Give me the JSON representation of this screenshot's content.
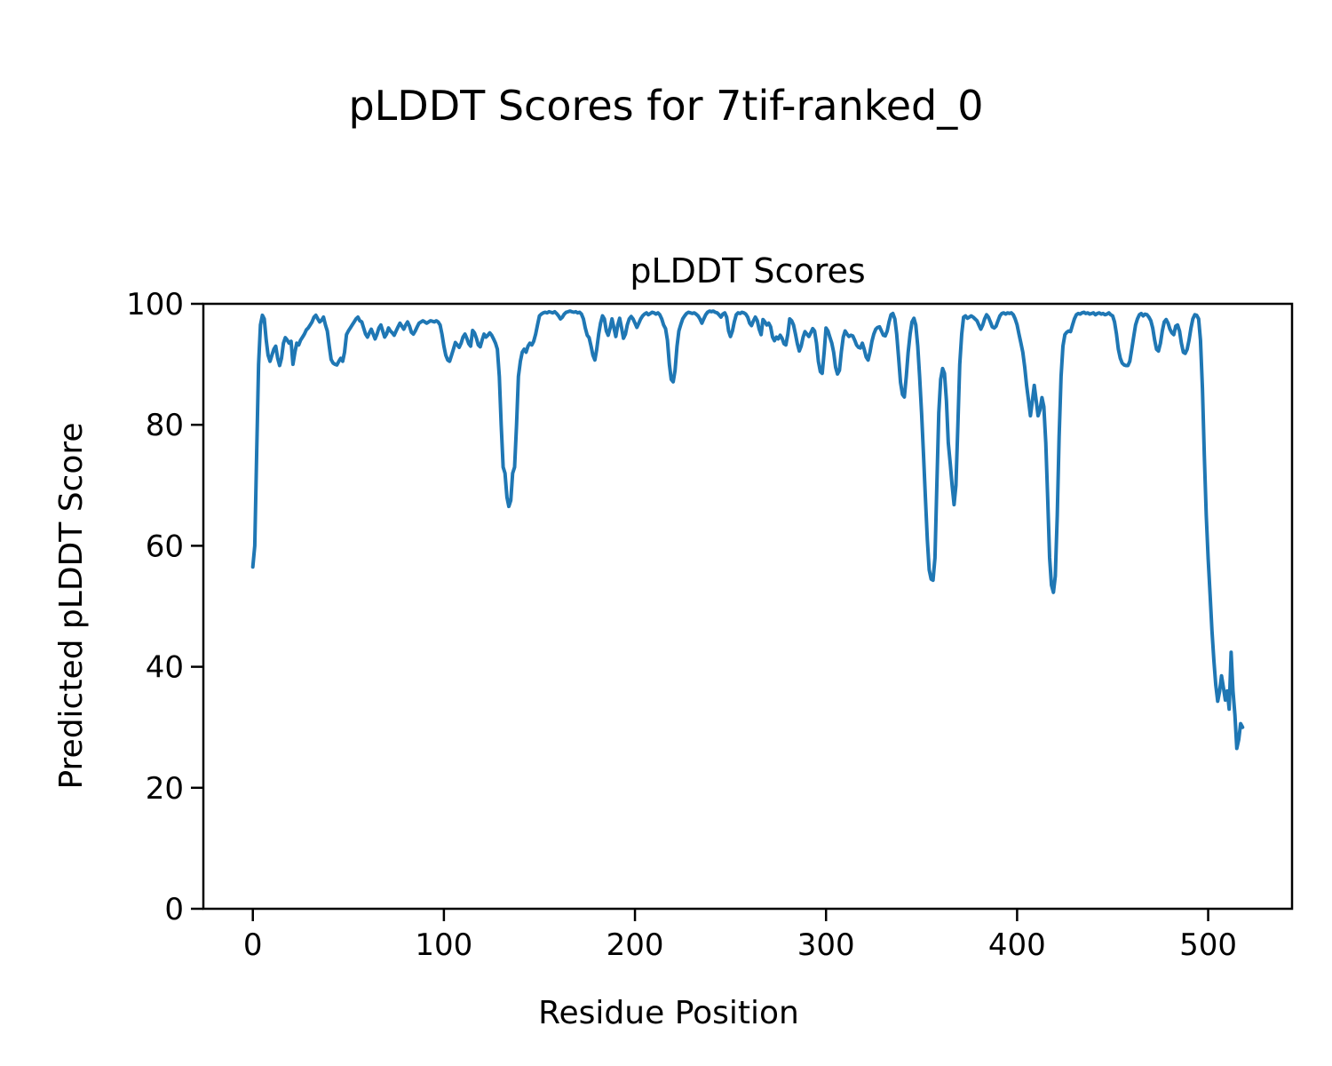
{
  "chart_data": {
    "type": "line",
    "suptitle": "pLDDT Scores for 7tif-ranked_0",
    "title": "pLDDT Scores",
    "xlabel": "Residue Position",
    "ylabel": "Predicted pLDDT Score",
    "series_name": "pLDDT",
    "x_start": 0,
    "x_step": 1,
    "xticks": [
      0,
      100,
      200,
      300,
      400,
      500
    ],
    "yticks": [
      0,
      20,
      40,
      60,
      80,
      100
    ],
    "xlim": [
      -25.9,
      543.9
    ],
    "ylim": [
      0,
      100
    ],
    "grid": false,
    "legend": false,
    "line_color": "#1f77b4",
    "axis_color": "#000000",
    "background_color": "#ffffff",
    "values": [
      56.5,
      60,
      75,
      90,
      96.5,
      98.1,
      97.5,
      94,
      91.5,
      90.5,
      91.5,
      92.5,
      93,
      91,
      89.8,
      91,
      93.5,
      94.4,
      94,
      93.5,
      93.8,
      90,
      92,
      93.5,
      93.2,
      94,
      94.5,
      95,
      95.7,
      96,
      96.5,
      97,
      97.8,
      98.1,
      97.5,
      97,
      97.3,
      97.8,
      96.5,
      95.5,
      93,
      90.8,
      90.2,
      90,
      89.9,
      90.5,
      91,
      90.5,
      92,
      94.9,
      95.5,
      96,
      96.5,
      97,
      97.5,
      97.8,
      97.2,
      97,
      96,
      95,
      94.5,
      95.2,
      95.8,
      95,
      94.2,
      95,
      96,
      96.5,
      95.5,
      94.5,
      95,
      96,
      95.5,
      95.2,
      94.8,
      95.5,
      96.2,
      96.8,
      96.3,
      95.8,
      96.5,
      97,
      96.3,
      95.3,
      95,
      95.5,
      96.2,
      96.8,
      97,
      97.2,
      97,
      96.8,
      97,
      97.2,
      97.1,
      97,
      97.2,
      97,
      96.5,
      95,
      93,
      91.5,
      90.7,
      90.5,
      91.5,
      92.5,
      93.6,
      93.2,
      92.8,
      93.5,
      94.5,
      95,
      94.3,
      93.4,
      93,
      95.6,
      95.2,
      94.3,
      93.2,
      92.9,
      94,
      95,
      94.5,
      94.8,
      95.2,
      94.8,
      94.2,
      93.5,
      92.5,
      88,
      80,
      73,
      72,
      68,
      66.5,
      67.5,
      72,
      73,
      80,
      88,
      90.5,
      92,
      92.5,
      92,
      93,
      93.5,
      93.2,
      93.8,
      95,
      96.5,
      98,
      98.3,
      98.5,
      98.6,
      98.5,
      98.7,
      98.6,
      98.5,
      98.7,
      98.4,
      98,
      97.5,
      97.8,
      98.3,
      98.6,
      98.7,
      98.8,
      98.7,
      98.6,
      98.7,
      98.5,
      98.6,
      98.3,
      97.5,
      96,
      94.8,
      94.4,
      93,
      91.5,
      90.7,
      92.5,
      95,
      96.8,
      98,
      97.5,
      95.5,
      94.8,
      96,
      97.5,
      96,
      94.6,
      96.5,
      97.6,
      96,
      94.3,
      95,
      96.5,
      97.5,
      97.9,
      97.5,
      96.8,
      96.1,
      96.8,
      97.5,
      98,
      98.3,
      98.5,
      98.2,
      98.4,
      98.6,
      98.5,
      98.3,
      98.5,
      98.2,
      97.5,
      96.5,
      95.9,
      94,
      90,
      87.5,
      87.1,
      89,
      93,
      95.5,
      96.6,
      97.5,
      98,
      98.4,
      98.6,
      98.5,
      98.4,
      98.5,
      98.3,
      98,
      97.5,
      96.8,
      97.5,
      98.2,
      98.6,
      98.8,
      98.7,
      98.8,
      98.6,
      98.5,
      98.2,
      97.8,
      98.3,
      98.5,
      97.8,
      95.5,
      94.6,
      95.5,
      97,
      98.2,
      98.5,
      98.4,
      98.6,
      98.5,
      98.3,
      97.8,
      96.8,
      96.4,
      97.2,
      97.8,
      97.2,
      95.8,
      94.9,
      97.4,
      97,
      96.5,
      96.8,
      96.2,
      94.5,
      93.9,
      94.5,
      94.2,
      94.8,
      94.3,
      93.4,
      93.2,
      95,
      97.5,
      97.2,
      96.5,
      95,
      93.4,
      92.2,
      93,
      94.5,
      95.4,
      95,
      94.6,
      95.2,
      95.9,
      95.5,
      93.5,
      90.5,
      88.8,
      88.5,
      92,
      96,
      95.5,
      94.5,
      93.5,
      92,
      89.5,
      88.4,
      89,
      92,
      94.5,
      95.5,
      95,
      94.6,
      94.8,
      94.7,
      94,
      93.2,
      92.8,
      92.7,
      93.5,
      92.5,
      91.2,
      90.7,
      92,
      93.8,
      95,
      95.8,
      96.1,
      96.2,
      95.5,
      94.8,
      94.7,
      95.5,
      97,
      98.2,
      98.4,
      97.5,
      95,
      91,
      87,
      85,
      84.6,
      88,
      92,
      95,
      97,
      97.6,
      96.5,
      93,
      88,
      82,
      75,
      68,
      61,
      56,
      54.5,
      54.3,
      58,
      70,
      82,
      87.5,
      89.3,
      88.5,
      84,
      77,
      73.6,
      70,
      66.8,
      70,
      80,
      90,
      95,
      97.8,
      98,
      97.6,
      97.8,
      98,
      97.8,
      97.5,
      97.2,
      96.5,
      95.8,
      96.5,
      97.5,
      98.2,
      97.8,
      97,
      96.2,
      96,
      96.3,
      97.2,
      98,
      98.4,
      98.5,
      98.3,
      98.5,
      98.4,
      98.5,
      98.2,
      97.5,
      96.5,
      95,
      93.5,
      92,
      89.5,
      86.5,
      84,
      81.5,
      84,
      86.5,
      84,
      81.5,
      82.5,
      84.5,
      83,
      77,
      68,
      58,
      53.5,
      52.3,
      55,
      65,
      78,
      88,
      93,
      94.9,
      95.3,
      95.5,
      95.4,
      96.5,
      97.5,
      98.2,
      98.4,
      98.3,
      98.5,
      98.6,
      98.4,
      98.5,
      98.3,
      98.4,
      98.5,
      98.2,
      98.4,
      98.5,
      98.3,
      98.4,
      98.2,
      98.3,
      98.5,
      98.2,
      98,
      97,
      95,
      92.5,
      91,
      90.2,
      89.9,
      89.8,
      89.8,
      90.5,
      92.5,
      94.5,
      96.5,
      97.5,
      98.2,
      98.4,
      98,
      98.3,
      98.2,
      97.8,
      97.2,
      96,
      94,
      92.5,
      92.2,
      93.5,
      95.5,
      97,
      97.4,
      96.8,
      95.8,
      95.2,
      94.9,
      96.3,
      96.5,
      95.5,
      93.5,
      92,
      91.8,
      92.5,
      94,
      96,
      97.5,
      98.2,
      98.1,
      97.5,
      94,
      86,
      75,
      65,
      58,
      52,
      46,
      41,
      37,
      34.3,
      36,
      38.5,
      36.5,
      34.5,
      36,
      33,
      42.4,
      36,
      32,
      26.5,
      28,
      30.6,
      30
    ]
  }
}
